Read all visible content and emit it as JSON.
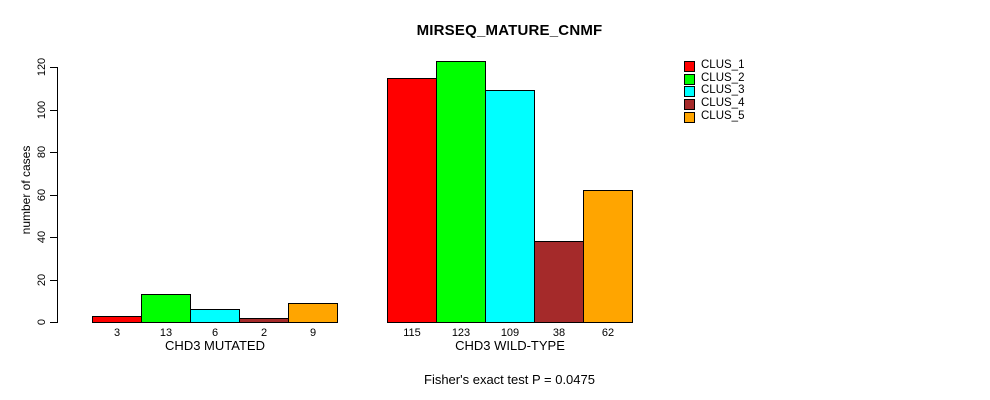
{
  "title": "MIRSEQ_MATURE_CNMF",
  "footer": "Fisher's exact test P = 0.0475",
  "chart_data": {
    "type": "bar",
    "title": "MIRSEQ_MATURE_CNMF",
    "xlabel": "",
    "ylabel": "number of cases",
    "ylim": [
      0,
      120
    ],
    "yticks": [
      0,
      20,
      40,
      60,
      80,
      100,
      120
    ],
    "grid": false,
    "legend_position": "top-right",
    "categories": [
      "CHD3 MUTATED",
      "CHD3 WILD-TYPE"
    ],
    "series": [
      {
        "name": "CLUS_1",
        "color": "#FF0000",
        "values": [
          3,
          115
        ]
      },
      {
        "name": "CLUS_2",
        "color": "#00FF00",
        "values": [
          13,
          123
        ]
      },
      {
        "name": "CLUS_3",
        "color": "#00FFFF",
        "values": [
          6,
          109
        ]
      },
      {
        "name": "CLUS_4",
        "color": "#A52A2A",
        "values": [
          2,
          38
        ]
      },
      {
        "name": "CLUS_5",
        "color": "#FFA500",
        "values": [
          9,
          62
        ]
      }
    ],
    "bar_value_labels": {
      "CHD3 MUTATED": [
        3,
        13,
        6,
        2,
        9
      ],
      "CHD3 WILD-TYPE": [
        115,
        123,
        109,
        38,
        62
      ]
    },
    "annotation": "Fisher's exact test P = 0.0475"
  }
}
